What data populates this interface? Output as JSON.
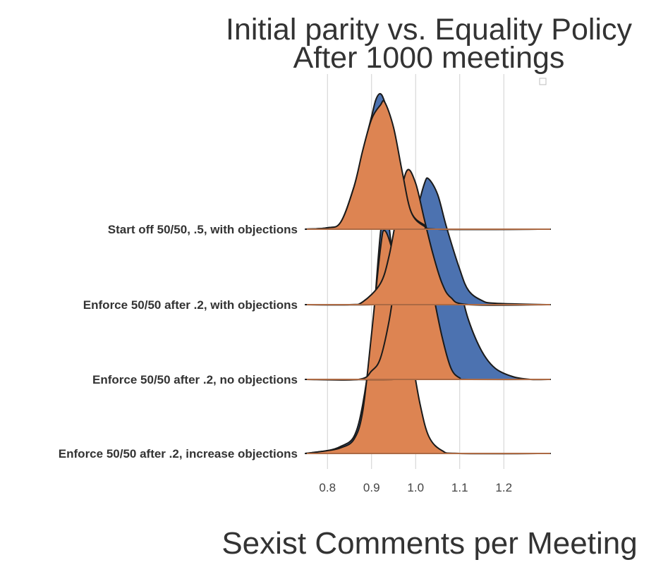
{
  "chart_data": {
    "type": "ridgeline",
    "title": [
      "Initial parity vs. Equality Policy",
      "After 1000 meetings"
    ],
    "xlabel": "Sexist Comments per Meeting",
    "ylabel": "",
    "xlim": [
      0.75,
      1.3
    ],
    "xticks": [
      0.8,
      0.9,
      1.0,
      1.1,
      1.2
    ],
    "xtick_labels": [
      "0.8",
      "0.9",
      "1.0",
      "1.1",
      "1.2"
    ],
    "grid": true,
    "legend": "top-right (empty)",
    "colors": {
      "blue": "#4c72b0",
      "orange": "#dd8452"
    },
    "rows": [
      {
        "label": "Start off 50/50, .5, with objections",
        "series": [
          {
            "color": "blue",
            "points": [
              [
                0.75,
                0.0
              ],
              [
                0.8,
                0.01
              ],
              [
                0.83,
                0.05
              ],
              [
                0.86,
                0.3
              ],
              [
                0.88,
                0.55
              ],
              [
                0.9,
                0.8
              ],
              [
                0.91,
                0.92
              ],
              [
                0.92,
                0.96
              ],
              [
                0.93,
                0.9
              ],
              [
                0.95,
                0.7
              ],
              [
                0.97,
                0.38
              ],
              [
                0.99,
                0.12
              ],
              [
                1.02,
                0.03
              ],
              [
                1.05,
                0.0
              ],
              [
                1.3,
                0.0
              ]
            ]
          },
          {
            "color": "orange",
            "points": [
              [
                0.75,
                0.0
              ],
              [
                0.8,
                0.01
              ],
              [
                0.83,
                0.05
              ],
              [
                0.86,
                0.3
              ],
              [
                0.88,
                0.56
              ],
              [
                0.9,
                0.78
              ],
              [
                0.92,
                0.88
              ],
              [
                0.93,
                0.9
              ],
              [
                0.95,
                0.72
              ],
              [
                0.97,
                0.4
              ],
              [
                0.99,
                0.12
              ],
              [
                1.02,
                0.02
              ],
              [
                1.05,
                0.0
              ],
              [
                1.3,
                0.0
              ]
            ]
          }
        ]
      },
      {
        "label": "Enforce 50/50 after .2, with objections",
        "series": [
          {
            "color": "blue",
            "points": [
              [
                0.75,
                0.0
              ],
              [
                0.9,
                0.0
              ],
              [
                0.93,
                0.02
              ],
              [
                0.96,
                0.12
              ],
              [
                0.98,
                0.32
              ],
              [
                1.0,
                0.62
              ],
              [
                1.02,
                0.86
              ],
              [
                1.03,
                0.89
              ],
              [
                1.05,
                0.78
              ],
              [
                1.07,
                0.55
              ],
              [
                1.1,
                0.25
              ],
              [
                1.12,
                0.1
              ],
              [
                1.15,
                0.03
              ],
              [
                1.18,
                0.01
              ],
              [
                1.3,
                0.0
              ]
            ]
          },
          {
            "color": "orange",
            "points": [
              [
                0.75,
                0.0
              ],
              [
                0.85,
                0.0
              ],
              [
                0.88,
                0.02
              ],
              [
                0.92,
                0.15
              ],
              [
                0.94,
                0.35
              ],
              [
                0.96,
                0.68
              ],
              [
                0.98,
                0.95
              ],
              [
                1.0,
                0.86
              ],
              [
                1.02,
                0.6
              ],
              [
                1.04,
                0.35
              ],
              [
                1.06,
                0.15
              ],
              [
                1.08,
                0.05
              ],
              [
                1.12,
                0.0
              ],
              [
                1.3,
                0.0
              ]
            ]
          }
        ]
      },
      {
        "label": "Enforce 50/50 after .2, no objections",
        "series": [
          {
            "color": "blue",
            "points": [
              [
                0.75,
                0.0
              ],
              [
                0.95,
                0.0
              ],
              [
                0.98,
                0.02
              ],
              [
                1.0,
                0.15
              ],
              [
                1.02,
                0.4
              ],
              [
                1.04,
                0.75
              ],
              [
                1.06,
                0.96
              ],
              [
                1.08,
                0.9
              ],
              [
                1.1,
                0.66
              ],
              [
                1.12,
                0.42
              ],
              [
                1.15,
                0.2
              ],
              [
                1.18,
                0.08
              ],
              [
                1.22,
                0.02
              ],
              [
                1.26,
                0.0
              ],
              [
                1.3,
                0.0
              ]
            ]
          },
          {
            "color": "orange",
            "points": [
              [
                0.75,
                0.0
              ],
              [
                0.87,
                0.0
              ],
              [
                0.9,
                0.06
              ],
              [
                0.92,
                0.15
              ],
              [
                0.94,
                0.42
              ],
              [
                0.96,
                0.82
              ],
              [
                0.98,
                1.12
              ],
              [
                0.99,
                1.14
              ],
              [
                1.0,
                1.05
              ],
              [
                1.02,
                0.88
              ],
              [
                1.04,
                0.6
              ],
              [
                1.06,
                0.3
              ],
              [
                1.08,
                0.08
              ],
              [
                1.1,
                0.01
              ],
              [
                1.12,
                0.0
              ],
              [
                1.3,
                0.0
              ]
            ]
          }
        ]
      },
      {
        "label": "Enforce 50/50 after .2, increase objections",
        "series": [
          {
            "color": "blue",
            "points": [
              [
                0.75,
                0.0
              ],
              [
                0.8,
                0.02
              ],
              [
                0.83,
                0.05
              ],
              [
                0.86,
                0.12
              ],
              [
                0.88,
                0.35
              ],
              [
                0.9,
                0.8
              ],
              [
                0.92,
                1.56
              ],
              [
                0.93,
                1.66
              ],
              [
                0.94,
                1.6
              ],
              [
                0.95,
                1.3
              ],
              [
                0.97,
                0.9
              ],
              [
                0.99,
                0.5
              ],
              [
                1.01,
                0.18
              ],
              [
                1.03,
                0.05
              ],
              [
                1.06,
                0.01
              ],
              [
                1.1,
                0.0
              ],
              [
                1.3,
                0.0
              ]
            ]
          },
          {
            "color": "orange",
            "points": [
              [
                0.75,
                0.0
              ],
              [
                0.8,
                0.02
              ],
              [
                0.83,
                0.04
              ],
              [
                0.86,
                0.1
              ],
              [
                0.88,
                0.3
              ],
              [
                0.9,
                0.85
              ],
              [
                0.92,
                1.45
              ],
              [
                0.93,
                1.58
              ],
              [
                0.95,
                1.4
              ],
              [
                0.97,
                1.02
              ],
              [
                0.99,
                0.7
              ],
              [
                1.01,
                0.35
              ],
              [
                1.03,
                0.12
              ],
              [
                1.06,
                0.02
              ],
              [
                1.1,
                0.0
              ],
              [
                1.3,
                0.0
              ]
            ]
          }
        ]
      }
    ]
  }
}
